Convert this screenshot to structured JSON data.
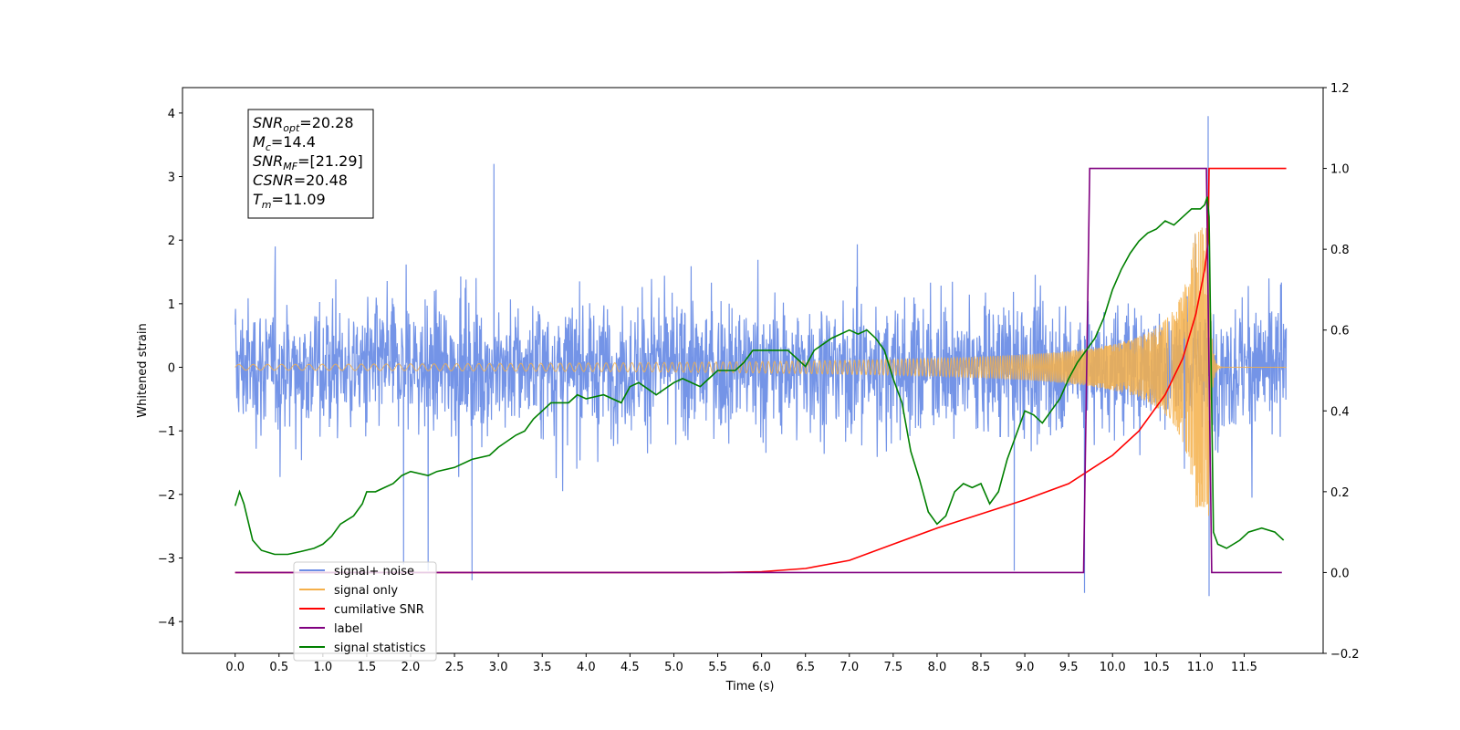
{
  "chart_data": {
    "type": "line",
    "xlabel": "Time (s)",
    "ylabel": "Whitened strain",
    "xlim": [
      -0.6,
      12.4
    ],
    "ylim": [
      -4.5,
      4.4
    ],
    "y2lim": [
      -0.2,
      1.2
    ],
    "xticks": [
      "0.0",
      "0.5",
      "1.0",
      "1.5",
      "2.0",
      "2.5",
      "3.0",
      "3.5",
      "4.0",
      "4.5",
      "5.0",
      "5.5",
      "6.0",
      "6.5",
      "7.0",
      "7.5",
      "8.0",
      "8.5",
      "9.0",
      "9.5",
      "10.0",
      "10.5",
      "11.0",
      "11.5"
    ],
    "yticks": [
      "4",
      "3",
      "2",
      "1",
      "0",
      "−1",
      "−2",
      "−3",
      "−4"
    ],
    "y2ticks": [
      "1.2",
      "1.0",
      "0.8",
      "0.6",
      "0.4",
      "0.2",
      "0.0",
      "−0.2"
    ],
    "annotation": {
      "lines": [
        {
          "main": "SNR",
          "sub": "opt",
          "rest": "=20.28"
        },
        {
          "main": "M",
          "sub": "c",
          "rest": "=14.4"
        },
        {
          "main": "SNR",
          "sub": "MF",
          "rest": "=[21.29]"
        },
        {
          "main": "CSNR",
          "sub": "",
          "rest": "=20.48"
        },
        {
          "main": "T",
          "sub": "m",
          "rest": "=11.09"
        }
      ]
    },
    "legend_position": "lower-left",
    "series": [
      {
        "name": "signal+ noise",
        "color": "#6d8ee6",
        "axis": "left",
        "note": "noise band approx ±1.5 with spikes; peak near t=11.09",
        "spikes": [
          [
            2.95,
            3.2
          ],
          [
            2.7,
            -3.35
          ],
          [
            9.68,
            -3.55
          ],
          [
            11.09,
            3.95
          ],
          [
            11.1,
            -3.6
          ],
          [
            8.88,
            -3.2
          ],
          [
            2.2,
            -3.2
          ],
          [
            1.92,
            -3.1
          ]
        ]
      },
      {
        "name": "signal only",
        "color": "#f5b04a",
        "axis": "left",
        "merger_time": 11.09
      },
      {
        "name": "cumilative SNR",
        "color": "#ff0000",
        "axis": "right",
        "points": [
          [
            0.0,
            0.0
          ],
          [
            5.5,
            0.0
          ],
          [
            6.0,
            0.002
          ],
          [
            6.5,
            0.01
          ],
          [
            7.0,
            0.03
          ],
          [
            7.5,
            0.07
          ],
          [
            8.0,
            0.11
          ],
          [
            8.5,
            0.145
          ],
          [
            9.0,
            0.18
          ],
          [
            9.5,
            0.22
          ],
          [
            10.0,
            0.29
          ],
          [
            10.3,
            0.35
          ],
          [
            10.6,
            0.44
          ],
          [
            10.8,
            0.53
          ],
          [
            10.95,
            0.64
          ],
          [
            11.05,
            0.75
          ],
          [
            11.09,
            0.82
          ],
          [
            11.1,
            1.0
          ],
          [
            11.6,
            1.0
          ],
          [
            11.98,
            1.0
          ]
        ]
      },
      {
        "name": "label",
        "color": "#800080",
        "axis": "right",
        "points": [
          [
            0.0,
            0.0
          ],
          [
            9.67,
            0.0
          ],
          [
            9.74,
            1.0
          ],
          [
            11.07,
            1.0
          ],
          [
            11.13,
            0.0
          ],
          [
            11.93,
            0.0
          ]
        ]
      },
      {
        "name": "signal statistics",
        "color": "#008000",
        "axis": "right",
        "points": [
          [
            0.0,
            0.165
          ],
          [
            0.05,
            0.2
          ],
          [
            0.1,
            0.17
          ],
          [
            0.2,
            0.08
          ],
          [
            0.3,
            0.055
          ],
          [
            0.45,
            0.045
          ],
          [
            0.6,
            0.045
          ],
          [
            0.75,
            0.052
          ],
          [
            0.9,
            0.06
          ],
          [
            1.0,
            0.07
          ],
          [
            1.1,
            0.09
          ],
          [
            1.2,
            0.12
          ],
          [
            1.35,
            0.14
          ],
          [
            1.45,
            0.17
          ],
          [
            1.5,
            0.2
          ],
          [
            1.6,
            0.2
          ],
          [
            1.7,
            0.21
          ],
          [
            1.8,
            0.22
          ],
          [
            1.9,
            0.24
          ],
          [
            2.0,
            0.25
          ],
          [
            2.2,
            0.24
          ],
          [
            2.3,
            0.25
          ],
          [
            2.5,
            0.26
          ],
          [
            2.7,
            0.28
          ],
          [
            2.9,
            0.29
          ],
          [
            3.0,
            0.31
          ],
          [
            3.2,
            0.34
          ],
          [
            3.3,
            0.35
          ],
          [
            3.4,
            0.38
          ],
          [
            3.5,
            0.4
          ],
          [
            3.6,
            0.42
          ],
          [
            3.8,
            0.42
          ],
          [
            3.9,
            0.44
          ],
          [
            4.0,
            0.43
          ],
          [
            4.2,
            0.44
          ],
          [
            4.4,
            0.42
          ],
          [
            4.5,
            0.46
          ],
          [
            4.6,
            0.47
          ],
          [
            4.8,
            0.44
          ],
          [
            5.0,
            0.47
          ],
          [
            5.1,
            0.48
          ],
          [
            5.3,
            0.46
          ],
          [
            5.4,
            0.48
          ],
          [
            5.5,
            0.5
          ],
          [
            5.7,
            0.5
          ],
          [
            5.8,
            0.52
          ],
          [
            5.9,
            0.55
          ],
          [
            6.1,
            0.55
          ],
          [
            6.3,
            0.55
          ],
          [
            6.5,
            0.51
          ],
          [
            6.6,
            0.55
          ],
          [
            6.8,
            0.58
          ],
          [
            7.0,
            0.6
          ],
          [
            7.1,
            0.59
          ],
          [
            7.2,
            0.6
          ],
          [
            7.3,
            0.58
          ],
          [
            7.4,
            0.55
          ],
          [
            7.5,
            0.48
          ],
          [
            7.6,
            0.42
          ],
          [
            7.7,
            0.3
          ],
          [
            7.8,
            0.23
          ],
          [
            7.9,
            0.15
          ],
          [
            8.0,
            0.12
          ],
          [
            8.1,
            0.14
          ],
          [
            8.2,
            0.2
          ],
          [
            8.3,
            0.22
          ],
          [
            8.4,
            0.21
          ],
          [
            8.5,
            0.22
          ],
          [
            8.6,
            0.17
          ],
          [
            8.7,
            0.2
          ],
          [
            8.8,
            0.28
          ],
          [
            8.9,
            0.34
          ],
          [
            9.0,
            0.4
          ],
          [
            9.1,
            0.39
          ],
          [
            9.2,
            0.37
          ],
          [
            9.3,
            0.4
          ],
          [
            9.4,
            0.43
          ],
          [
            9.5,
            0.48
          ],
          [
            9.6,
            0.52
          ],
          [
            9.7,
            0.55
          ],
          [
            9.8,
            0.58
          ],
          [
            9.9,
            0.63
          ],
          [
            10.0,
            0.7
          ],
          [
            10.1,
            0.75
          ],
          [
            10.2,
            0.79
          ],
          [
            10.3,
            0.82
          ],
          [
            10.4,
            0.84
          ],
          [
            10.5,
            0.85
          ],
          [
            10.6,
            0.87
          ],
          [
            10.7,
            0.86
          ],
          [
            10.8,
            0.88
          ],
          [
            10.9,
            0.9
          ],
          [
            11.0,
            0.9
          ],
          [
            11.05,
            0.91
          ],
          [
            11.08,
            0.93
          ],
          [
            11.1,
            0.88
          ],
          [
            11.15,
            0.1
          ],
          [
            11.2,
            0.07
          ],
          [
            11.3,
            0.06
          ],
          [
            11.45,
            0.08
          ],
          [
            11.55,
            0.1
          ],
          [
            11.7,
            0.11
          ],
          [
            11.85,
            0.1
          ],
          [
            11.9,
            0.09
          ],
          [
            11.95,
            0.08
          ]
        ]
      }
    ]
  },
  "legend": {
    "items": [
      {
        "label": "signal+ noise",
        "color": "#6d8ee6"
      },
      {
        "label": "signal only",
        "color": "#f5b04a"
      },
      {
        "label": "cumilative SNR",
        "color": "#ff0000"
      },
      {
        "label": "label",
        "color": "#800080"
      },
      {
        "label": "signal statistics",
        "color": "#008000"
      }
    ]
  }
}
